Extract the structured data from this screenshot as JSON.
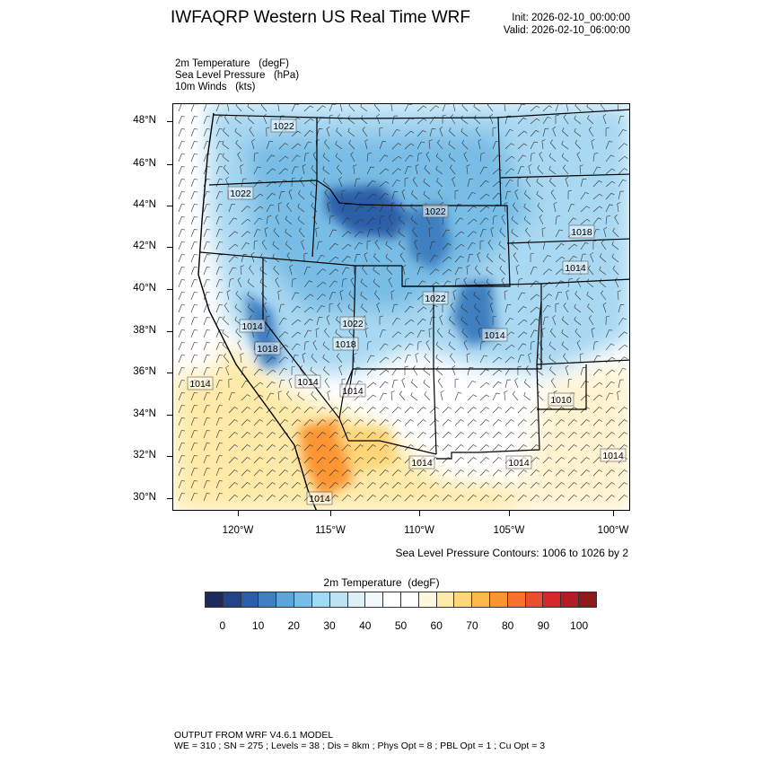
{
  "header": {
    "title": "IWFAQRP Western US Real Time WRF",
    "init": "Init: 2026-02-10_00:00:00",
    "valid": "Valid: 2026-02-10_06:00:00"
  },
  "fields": [
    "2m Temperature   (degF)",
    "Sea Level Pressure   (hPa)",
    "10m Winds   (kts)"
  ],
  "map": {
    "lat_labels": [
      "48°N",
      "46°N",
      "44°N",
      "42°N",
      "40°N",
      "38°N",
      "36°N",
      "34°N",
      "32°N",
      "30°N"
    ],
    "lon_labels": [
      "120°W",
      "115°W",
      "110°W",
      "105°W",
      "100°W"
    ],
    "contour_labels": [
      "1022",
      "1022",
      "1022",
      "1018",
      "1014",
      "1022",
      "1022",
      "1018",
      "1014",
      "1018",
      "1014",
      "1014",
      "1014",
      "1014",
      "1010",
      "1014",
      "1014",
      "1014",
      "1014"
    ],
    "colors": {
      "cold": "#2a5ea8",
      "cool": "#78bde5",
      "neutral": "#ffffff",
      "warm": "#feb84a"
    }
  },
  "slp_note": "Sea Level Pressure Contours: 1006 to 1026 by 2",
  "colorbar": {
    "title": "2m Temperature  (degF)",
    "labels": [
      "0",
      "10",
      "20",
      "30",
      "40",
      "50",
      "60",
      "70",
      "80",
      "90",
      "100"
    ],
    "colors": [
      "#1c2a5e",
      "#22448a",
      "#2a5ea8",
      "#3e7fc0",
      "#5aa5d8",
      "#78bde5",
      "#a0dbf5",
      "#bde3f3",
      "#ddf0f8",
      "#f0f8fb",
      "#ffffff",
      "#ffffff",
      "#fff8e0",
      "#feeaa8",
      "#fed577",
      "#feb84a",
      "#fc9530",
      "#f7712c",
      "#e94e30",
      "#d6282a",
      "#b61c27",
      "#8e1a1b"
    ]
  },
  "footer": {
    "line1": "OUTPUT FROM WRF V4.6.1 MODEL",
    "line2": "WE = 310 ; SN = 275 ; Levels = 38 ; Dis = 8km ; Phys Opt = 8 ; PBL Opt = 1 ; Cu Opt = 3"
  }
}
